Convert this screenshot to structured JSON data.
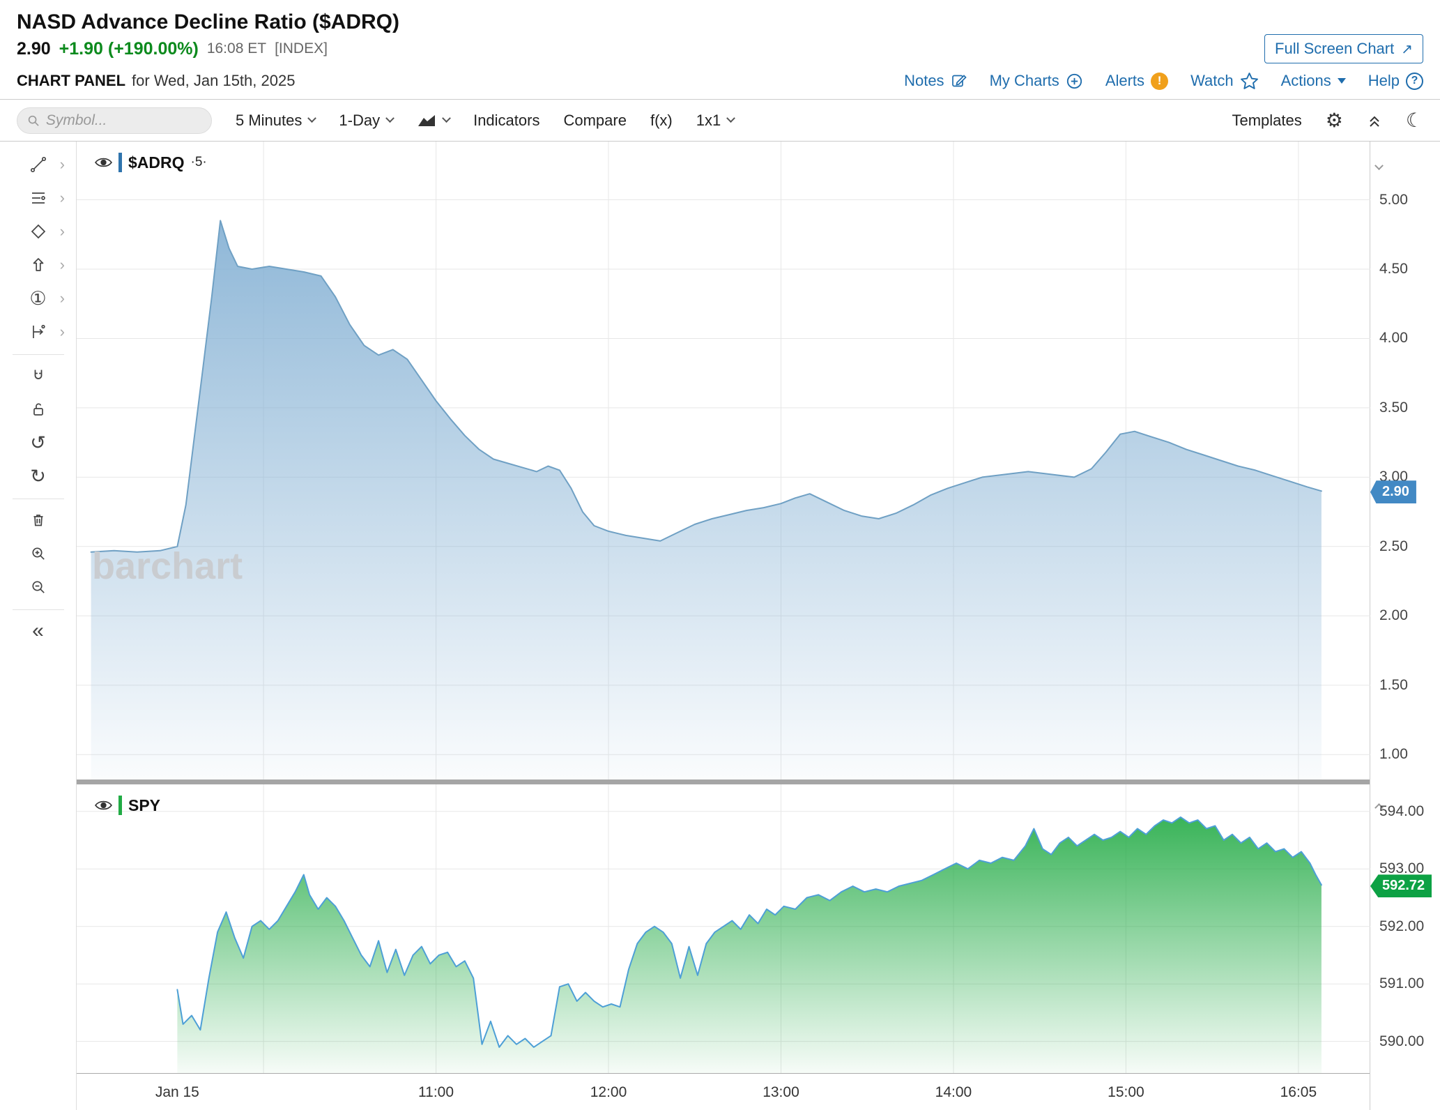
{
  "header": {
    "title": "NASD Advance Decline Ratio ($ADRQ)",
    "last": "2.90",
    "change": "+1.90 (+190.00%)",
    "time": "16:08 ET",
    "tag": "[INDEX]",
    "fullscreen_label": "Full Screen Chart"
  },
  "panel": {
    "label": "CHART PANEL",
    "date": "for Wed, Jan 15th, 2025",
    "links": [
      {
        "label": "Notes"
      },
      {
        "label": "My Charts"
      },
      {
        "label": "Alerts"
      },
      {
        "label": "Watch"
      },
      {
        "label": "Actions"
      },
      {
        "label": "Help"
      }
    ]
  },
  "toolbar": {
    "search_placeholder": "Symbol...",
    "timeframe": "5 Minutes",
    "range": "1-Day",
    "indicators": "Indicators",
    "compare": "Compare",
    "fx": "f(x)",
    "layout": "1x1",
    "templates": "Templates"
  },
  "glyphs": {
    "submenu": "›",
    "annotation": "①",
    "undo": "↺",
    "redo": "↻",
    "collapse": "«",
    "gear": "⚙",
    "moon": "☾",
    "external": "↗"
  },
  "drawing_tools": [
    "trendline",
    "fibonacci",
    "shapes",
    "arrow",
    "annotation",
    "measure",
    "magnet",
    "unlock",
    "undo",
    "redo",
    "delete",
    "zoom-in",
    "zoom-out",
    "collapse-sidebar"
  ],
  "watermark": "barchart",
  "panes": [
    {
      "symbol": "$ADRQ",
      "suffix": "·5·"
    },
    {
      "symbol": "SPY",
      "suffix": ""
    }
  ],
  "x_axis": {
    "xlim": [
      -5,
      445
    ],
    "grid_minutes": [
      60,
      120,
      180,
      240,
      300,
      360,
      420
    ],
    "ticks": [
      {
        "m": 30,
        "label": "Jan 15"
      },
      {
        "m": 120,
        "label": "11:00"
      },
      {
        "m": 180,
        "label": "12:00"
      },
      {
        "m": 240,
        "label": "13:00"
      },
      {
        "m": 300,
        "label": "14:00"
      },
      {
        "m": 360,
        "label": "15:00"
      },
      {
        "m": 420,
        "label": "16:05"
      }
    ]
  },
  "chart_data": [
    {
      "type": "area",
      "name": "$ADRQ 5-minute",
      "pane_height": 915,
      "ylim": [
        0.82,
        5.42
      ],
      "y_ticks": [
        {
          "value": 5.0,
          "label": "5.00"
        },
        {
          "value": 4.5,
          "label": "4.50"
        },
        {
          "value": 4.0,
          "label": "4.00"
        },
        {
          "value": 3.5,
          "label": "3.50"
        },
        {
          "value": 3.0,
          "label": "3.00"
        },
        {
          "value": 2.5,
          "label": "2.50"
        },
        {
          "value": 2.0,
          "label": "2.00"
        },
        {
          "value": 1.5,
          "label": "1.50"
        },
        {
          "value": 1.0,
          "label": "1.00"
        }
      ],
      "line_color": "#6fa0c4",
      "fill_top": "#85b1d4",
      "badge_color": "#4289c4",
      "last_value": 2.9,
      "last_label": "2.90",
      "x": [
        0,
        8,
        16,
        24,
        30,
        33,
        36,
        39,
        42,
        45,
        48,
        51,
        56,
        62,
        68,
        74,
        80,
        85,
        90,
        95,
        100,
        105,
        110,
        115,
        120,
        125,
        130,
        135,
        140,
        145,
        150,
        155,
        159,
        163,
        167,
        171,
        175,
        180,
        186,
        192,
        198,
        204,
        210,
        216,
        222,
        228,
        234,
        240,
        245,
        250,
        256,
        262,
        268,
        274,
        280,
        286,
        292,
        298,
        304,
        310,
        318,
        326,
        334,
        342,
        348,
        353,
        358,
        363,
        369,
        375,
        381,
        387,
        393,
        399,
        405,
        411,
        417,
        423,
        428
      ],
      "y": [
        2.46,
        2.47,
        2.46,
        2.47,
        2.5,
        2.8,
        3.3,
        3.8,
        4.3,
        4.85,
        4.65,
        4.52,
        4.5,
        4.52,
        4.5,
        4.48,
        4.45,
        4.3,
        4.1,
        3.95,
        3.88,
        3.92,
        3.85,
        3.7,
        3.55,
        3.42,
        3.3,
        3.2,
        3.13,
        3.1,
        3.07,
        3.04,
        3.08,
        3.05,
        2.92,
        2.75,
        2.65,
        2.61,
        2.58,
        2.56,
        2.54,
        2.6,
        2.66,
        2.7,
        2.73,
        2.76,
        2.78,
        2.81,
        2.85,
        2.88,
        2.82,
        2.76,
        2.72,
        2.7,
        2.74,
        2.8,
        2.87,
        2.92,
        2.96,
        3.0,
        3.02,
        3.04,
        3.02,
        3.0,
        3.06,
        3.18,
        3.31,
        3.33,
        3.29,
        3.25,
        3.2,
        3.16,
        3.12,
        3.08,
        3.05,
        3.01,
        2.97,
        2.93,
        2.9
      ]
    },
    {
      "type": "area",
      "name": "SPY",
      "pane_height": 414,
      "ylim": [
        589.45,
        594.47
      ],
      "y_ticks": [
        {
          "value": 594.0,
          "label": "594.00"
        },
        {
          "value": 593.0,
          "label": "593.00"
        },
        {
          "value": 592.0,
          "label": "592.00"
        },
        {
          "value": 591.0,
          "label": "591.00"
        },
        {
          "value": 590.0,
          "label": "590.00"
        }
      ],
      "line_color": "#4d9fd6",
      "fill_top": "#28ad4a",
      "badge_color": "#0da144",
      "last_value": 592.72,
      "last_label": "592.72",
      "x": [
        30,
        32,
        35,
        38,
        41,
        44,
        47,
        50,
        53,
        56,
        59,
        62,
        65,
        68,
        71,
        74,
        76,
        79,
        82,
        85,
        88,
        91,
        94,
        97,
        100,
        103,
        106,
        109,
        112,
        115,
        118,
        121,
        124,
        127,
        130,
        133,
        136,
        139,
        142,
        145,
        148,
        151,
        154,
        157,
        160,
        163,
        166,
        169,
        172,
        175,
        178,
        181,
        184,
        187,
        190,
        193,
        196,
        199,
        202,
        205,
        208,
        211,
        214,
        217,
        220,
        223,
        226,
        229,
        232,
        235,
        238,
        241,
        245,
        249,
        253,
        257,
        261,
        265,
        269,
        273,
        277,
        281,
        285,
        289,
        293,
        297,
        301,
        305,
        309,
        313,
        317,
        321,
        325,
        328,
        331,
        334,
        337,
        340,
        343,
        346,
        349,
        352,
        355,
        358,
        361,
        364,
        367,
        370,
        373,
        376,
        379,
        382,
        385,
        388,
        391,
        394,
        397,
        400,
        403,
        406,
        409,
        412,
        415,
        418,
        421,
        424,
        426,
        428
      ],
      "y": [
        590.9,
        590.3,
        590.45,
        590.2,
        591.1,
        591.9,
        592.25,
        591.8,
        591.45,
        592.0,
        592.1,
        591.95,
        592.1,
        592.35,
        592.6,
        592.9,
        592.55,
        592.3,
        592.5,
        592.35,
        592.1,
        591.8,
        591.5,
        591.3,
        591.75,
        591.2,
        591.6,
        591.15,
        591.5,
        591.65,
        591.35,
        591.5,
        591.55,
        591.3,
        591.4,
        591.1,
        589.95,
        590.35,
        589.9,
        590.1,
        589.95,
        590.05,
        589.9,
        590.0,
        590.1,
        590.95,
        591.0,
        590.7,
        590.85,
        590.7,
        590.6,
        590.65,
        590.6,
        591.25,
        591.7,
        591.9,
        592.0,
        591.9,
        591.7,
        591.1,
        591.65,
        591.15,
        591.7,
        591.9,
        592.0,
        592.1,
        591.95,
        592.2,
        592.05,
        592.3,
        592.2,
        592.35,
        592.3,
        592.5,
        592.55,
        592.45,
        592.6,
        592.7,
        592.6,
        592.65,
        592.6,
        592.7,
        592.75,
        592.8,
        592.9,
        593.0,
        593.1,
        593.0,
        593.15,
        593.1,
        593.2,
        593.15,
        593.4,
        593.7,
        593.35,
        593.25,
        593.45,
        593.55,
        593.4,
        593.5,
        593.6,
        593.5,
        593.55,
        593.65,
        593.55,
        593.7,
        593.6,
        593.75,
        593.85,
        593.8,
        593.9,
        593.8,
        593.85,
        593.7,
        593.75,
        593.5,
        593.6,
        593.45,
        593.55,
        593.35,
        593.45,
        593.3,
        593.35,
        593.2,
        593.3,
        593.1,
        592.9,
        592.72
      ]
    }
  ]
}
